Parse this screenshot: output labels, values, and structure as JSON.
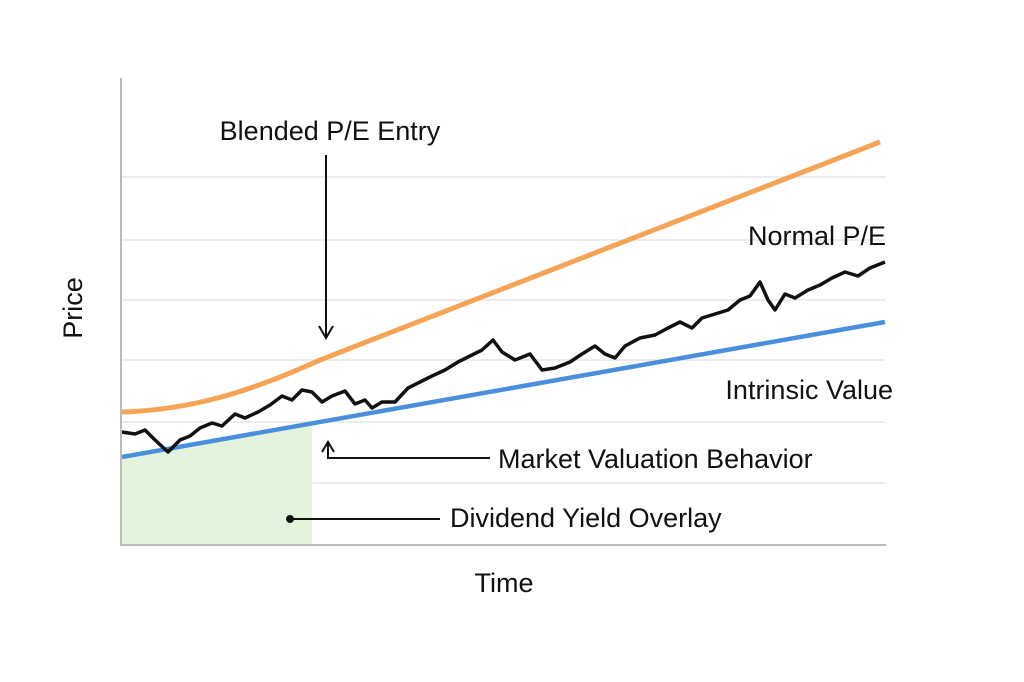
{
  "axes": {
    "y_label": "Price",
    "x_label": "Time"
  },
  "annotations": {
    "blended_pe_entry": "Blended P/E Entry",
    "normal_pe": "Normal P/E",
    "intrinsic_value": "Intrinsic Value",
    "market_valuation_behavior": "Market Valuation Behavior",
    "dividend_yield_overlay": "Dividend Yield Overlay"
  }
}
